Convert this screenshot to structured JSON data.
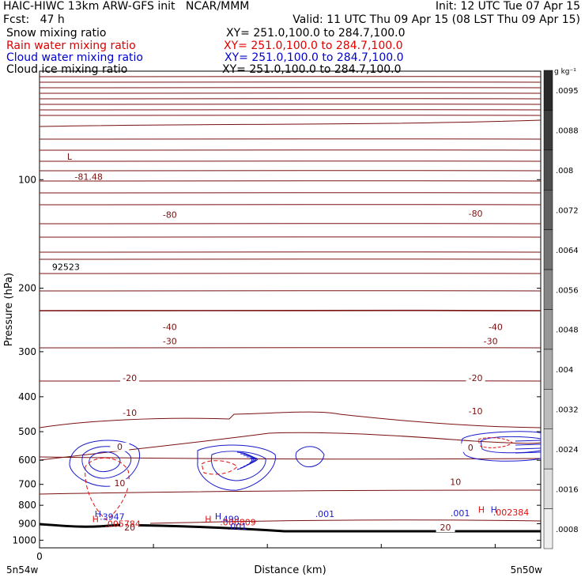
{
  "header": {
    "title_left": "HAIC-HIWC 13km ARW-GFS init   NCAR/MMM",
    "init": "Init: 12 UTC Tue 07 Apr 15",
    "fcst": "Fcst:   47 h",
    "valid": "Valid: 11 UTC Thu 09 Apr 15 (08 LST Thu 09 Apr 15)",
    "fields": [
      {
        "name": "Snow mixing ratio",
        "xy": "XY= 251.0,100.0 to 284.7,100.0",
        "color": "#000000"
      },
      {
        "name": "Rain water mixing ratio",
        "xy": "XY= 251.0,100.0 to 284.7,100.0",
        "color": "#e00000"
      },
      {
        "name": "Cloud water mixing ratio",
        "xy": "XY= 251.0,100.0 to 284.7,100.0",
        "color": "#0000cc"
      },
      {
        "name": "Cloud ice mixing ratio",
        "xy": "XY= 251.0,100.0 to 284.7,100.0",
        "color": "#000000"
      }
    ]
  },
  "colorbar": {
    "unit": "g kg⁻¹",
    "labels": [
      ".0095",
      ".0088",
      ".008",
      ".0072",
      ".0064",
      ".0056",
      ".0048",
      ".004",
      ".0032",
      ".0024",
      ".0016",
      ".0008"
    ],
    "shades": [
      "#2a2a2a",
      "#3c3c3c",
      "#4e4e4e",
      "#606060",
      "#727272",
      "#858585",
      "#979797",
      "#a9a9a9",
      "#bcbcbc",
      "#cdcdcd",
      "#dedede",
      "#efefef"
    ]
  },
  "chart_data": {
    "type": "contour",
    "ylabel": "Pressure (hPa)",
    "xlabel": "Distance (km)",
    "x_start_label": "0",
    "x_end_labels": [
      "5n54w",
      "5n50w"
    ],
    "yticks": [
      100,
      200,
      300,
      400,
      500,
      600,
      700,
      800,
      900,
      1000
    ],
    "ylim": [
      50,
      1050
    ],
    "y_log": true,
    "xlim": [
      0,
      1
    ],
    "colors": {
      "temperature": "#7a1010",
      "cloud_water": "#1a1acc",
      "rain": "#e01010",
      "terrain": "#000000"
    },
    "temperature_labels": [
      {
        "text": "-80",
        "x": 0.26,
        "p": 127
      },
      {
        "text": "-80",
        "x": 0.87,
        "p": 126
      },
      {
        "text": "-40",
        "x": 0.26,
        "p": 260
      },
      {
        "text": "-40",
        "x": 0.91,
        "p": 260
      },
      {
        "text": "-30",
        "x": 0.26,
        "p": 285
      },
      {
        "text": "-30",
        "x": 0.9,
        "p": 285
      },
      {
        "text": "-20",
        "x": 0.18,
        "p": 360
      },
      {
        "text": "-20",
        "x": 0.87,
        "p": 360
      },
      {
        "text": "-10",
        "x": 0.18,
        "p": 450
      },
      {
        "text": "-10",
        "x": 0.87,
        "p": 445
      },
      {
        "text": "0",
        "x": 0.16,
        "p": 558
      },
      {
        "text": "0",
        "x": 0.86,
        "p": 561
      },
      {
        "text": "10",
        "x": 0.16,
        "p": 705
      },
      {
        "text": "10",
        "x": 0.83,
        "p": 700
      },
      {
        "text": "20",
        "x": 0.18,
        "p": 935
      },
      {
        "text": "20",
        "x": 0.81,
        "p": 935
      }
    ],
    "extrema_labels": [
      {
        "text": "L",
        "x": 0.055,
        "p": 88,
        "color": "#7a1010"
      },
      {
        "text": "-81.48",
        "x": 0.07,
        "p": 100,
        "color": "#7a1010"
      },
      {
        "text": "92523",
        "x": 0.025,
        "p": 178,
        "color": "#000000"
      },
      {
        "text": "H",
        "x": 0.11,
        "p": 862,
        "color": "#1a1acc"
      },
      {
        "text": ".3947",
        "x": 0.12,
        "p": 877,
        "color": "#1a1acc"
      },
      {
        "text": "H",
        "x": 0.105,
        "p": 890,
        "color": "#e01010"
      },
      {
        "text": ".005784",
        "x": 0.13,
        "p": 918,
        "color": "#e01010"
      },
      {
        "text": "H",
        "x": 0.35,
        "p": 876,
        "color": "#1a1acc"
      },
      {
        "text": ".499",
        "x": 0.36,
        "p": 890,
        "color": "#1a1acc"
      },
      {
        "text": "H",
        "x": 0.33,
        "p": 892,
        "color": "#e01010"
      },
      {
        "text": ".006809",
        "x": 0.36,
        "p": 910,
        "color": "#e01010"
      },
      {
        "text": ".001",
        "x": 0.375,
        "p": 935,
        "color": "#1a1acc"
      },
      {
        "text": ".001",
        "x": 0.55,
        "p": 862,
        "color": "#1a1acc"
      },
      {
        "text": ".001",
        "x": 0.82,
        "p": 857,
        "color": "#1a1acc"
      },
      {
        "text": "H",
        "x": 0.875,
        "p": 838,
        "color": "#e01010"
      },
      {
        "text": "H",
        "x": 0.9,
        "p": 838,
        "color": "#1a1acc"
      },
      {
        "text": ".002384",
        "x": 0.905,
        "p": 853,
        "color": "#e01010"
      }
    ]
  }
}
